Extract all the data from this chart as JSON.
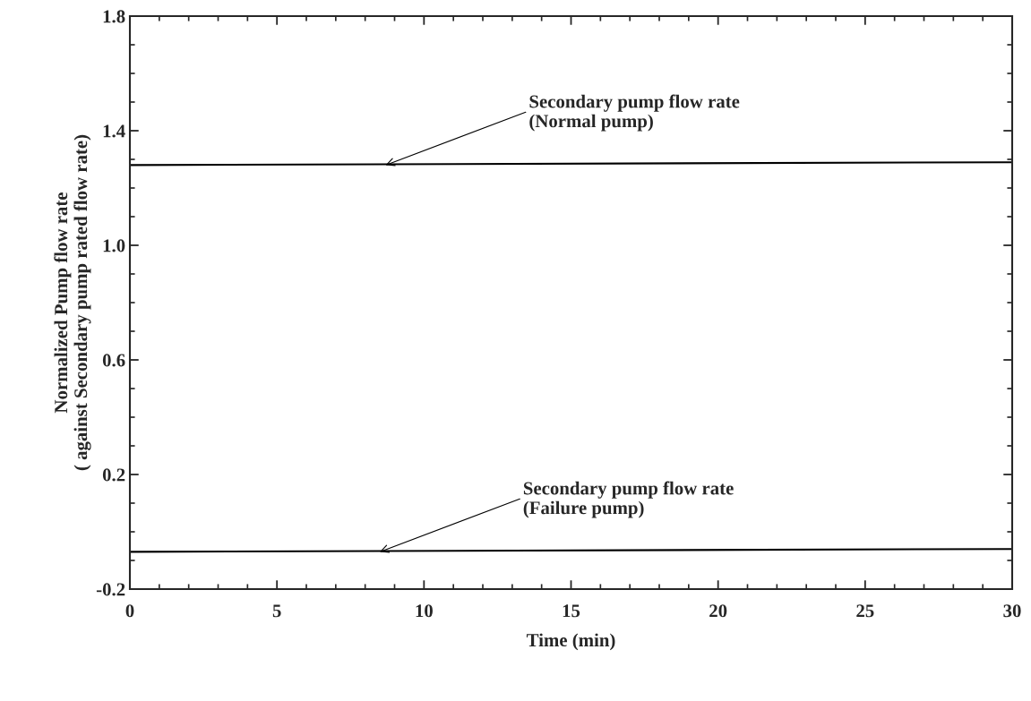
{
  "chart_data": {
    "type": "line",
    "xlabel": "Time (min)",
    "ylabel": "Normalized Pump flow rate\n( against Secondary pump rated flow rate)",
    "series": [
      {
        "color": "#000000",
        "values": [
          1.28,
          1.29
        ]
      },
      {
        "color": "#000000",
        "values": [
          -0.07,
          -0.06
        ]
      }
    ],
    "x": [
      0,
      30
    ],
    "xlim": [
      0,
      30
    ],
    "xticks": [
      0,
      5,
      10,
      15,
      20,
      25,
      30
    ],
    "ylim": [
      -0.2,
      1.8
    ],
    "yticks": [
      -0.2,
      0.2,
      0.6,
      {
        "value": 1.0,
        "label": "1.0"
      },
      1.4,
      1.8
    ],
    "grid": false,
    "legend": false,
    "marker": "none",
    "line_style": "solid",
    "annotations": [
      {
        "text": "Secondary pump flow rate\n(Normal pump)",
        "x": 8.7,
        "y": 1.28
      },
      {
        "text": "Secondary pump flow rate\n(Failure pump)",
        "x": 8.5,
        "y": -0.07
      }
    ]
  }
}
